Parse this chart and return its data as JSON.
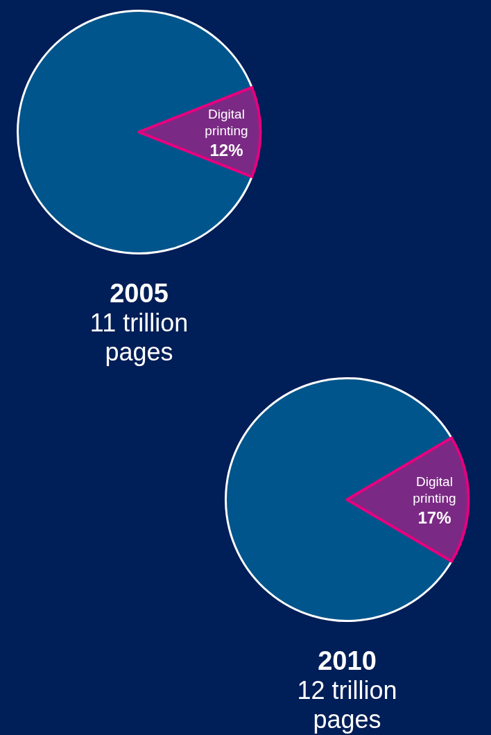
{
  "chart_data": [
    {
      "type": "pie",
      "title": "2005",
      "subtitle": "11 trillion pages",
      "categories": [
        null,
        "Digital printing"
      ],
      "values": [
        88,
        12
      ],
      "colors": [
        "#00558c",
        "#7a2a84"
      ],
      "value_labels": [
        null,
        "12%"
      ]
    },
    {
      "type": "pie",
      "title": "2010",
      "subtitle": "12 trillion pages",
      "categories": [
        null,
        "Digital printing"
      ],
      "values": [
        83,
        17
      ],
      "colors": [
        "#00558c",
        "#7a2a84"
      ],
      "value_labels": [
        null,
        "17%"
      ]
    }
  ]
}
